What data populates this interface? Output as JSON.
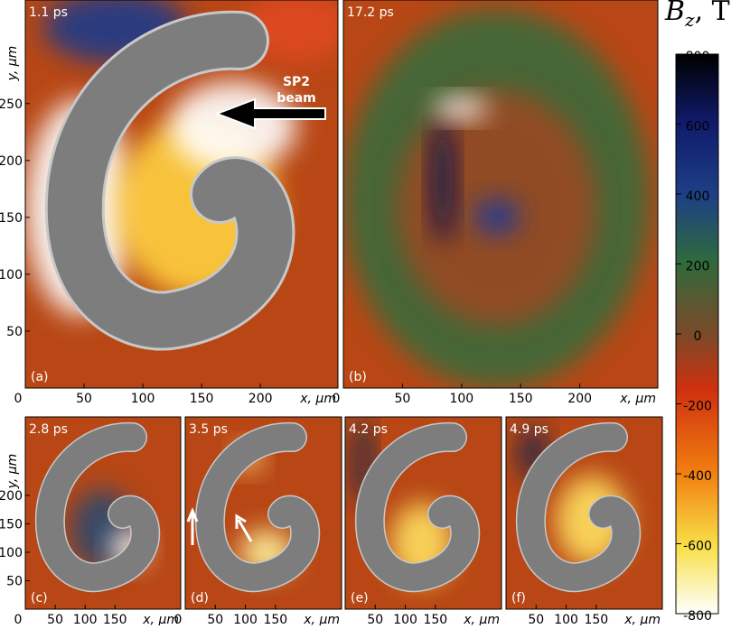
{
  "figure": {
    "panels": [
      {
        "label": "(a)",
        "time": "1.1 ps",
        "xlabel": "x, μm",
        "ylabel": "y, μm",
        "xlim": [
          0,
          266
        ],
        "ylim": [
          0,
          341
        ],
        "xticks": [
          0,
          50,
          100,
          150,
          200
        ],
        "yticks": [
          50,
          100,
          150,
          200,
          250
        ],
        "annotation": [
          "SP2",
          "beam"
        ]
      },
      {
        "label": "(b)",
        "time": "17.2 ps",
        "xlabel": "x, μm",
        "xlim": [
          0,
          266
        ],
        "ylim": [
          0,
          341
        ],
        "xticks": [
          0,
          50,
          100,
          150,
          200
        ]
      },
      {
        "label": "(c)",
        "time": "2.8 ps",
        "xlabel": "x, μm",
        "ylabel": "y, μm",
        "xlim": [
          0,
          260
        ],
        "ylim": [
          0,
          338
        ],
        "xticks": [
          0,
          50,
          100,
          150
        ],
        "yticks": [
          50,
          100,
          150,
          200
        ]
      },
      {
        "label": "(d)",
        "time": "3.5 ps",
        "xlabel": "x, μm",
        "xlim": [
          0,
          260
        ],
        "ylim": [
          0,
          338
        ],
        "xticks": [
          0,
          50,
          100,
          150
        ]
      },
      {
        "label": "(e)",
        "time": "4.2 ps",
        "xlabel": "x, μm",
        "xlim": [
          0,
          260
        ],
        "ylim": [
          0,
          338
        ],
        "xticks": [
          50,
          100,
          150
        ]
      },
      {
        "label": "(f)",
        "time": "4.9 ps",
        "xlabel": "x, μm",
        "xlim": [
          0,
          260
        ],
        "ylim": [
          0,
          338
        ],
        "xticks": [
          50,
          100,
          150
        ]
      }
    ],
    "colorbar": {
      "symbol": "B",
      "subscript": "z",
      "unit": ", T",
      "lim": [
        -800,
        800
      ],
      "ticks": [
        800,
        600,
        400,
        200,
        0,
        -200,
        -400,
        -600,
        -800
      ]
    }
  }
}
